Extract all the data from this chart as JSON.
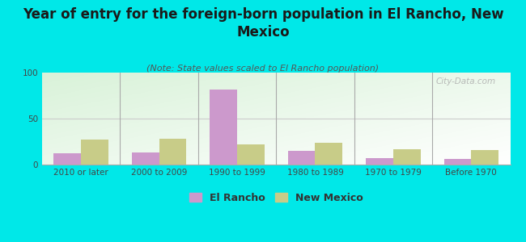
{
  "title": "Year of entry for the foreign-born population in El Rancho, New\nMexico",
  "subtitle": "(Note: State values scaled to El Rancho population)",
  "categories": [
    "2010 or later",
    "2000 to 2009",
    "1990 to 1999",
    "1980 to 1989",
    "1970 to 1979",
    "Before 1970"
  ],
  "el_rancho": [
    12,
    13,
    82,
    15,
    7,
    6
  ],
  "new_mexico": [
    27,
    28,
    22,
    24,
    17,
    16
  ],
  "el_rancho_color": "#cc99cc",
  "new_mexico_color": "#c8cc88",
  "ylim": [
    0,
    100
  ],
  "yticks": [
    0,
    50,
    100
  ],
  "bar_width": 0.35,
  "fig_bg_color": "#00e8e8",
  "watermark": "City-Data.com",
  "legend_el_rancho": "El Rancho",
  "legend_new_mexico": "New Mexico",
  "title_fontsize": 12,
  "subtitle_fontsize": 8,
  "tick_fontsize": 7.5,
  "legend_fontsize": 9
}
